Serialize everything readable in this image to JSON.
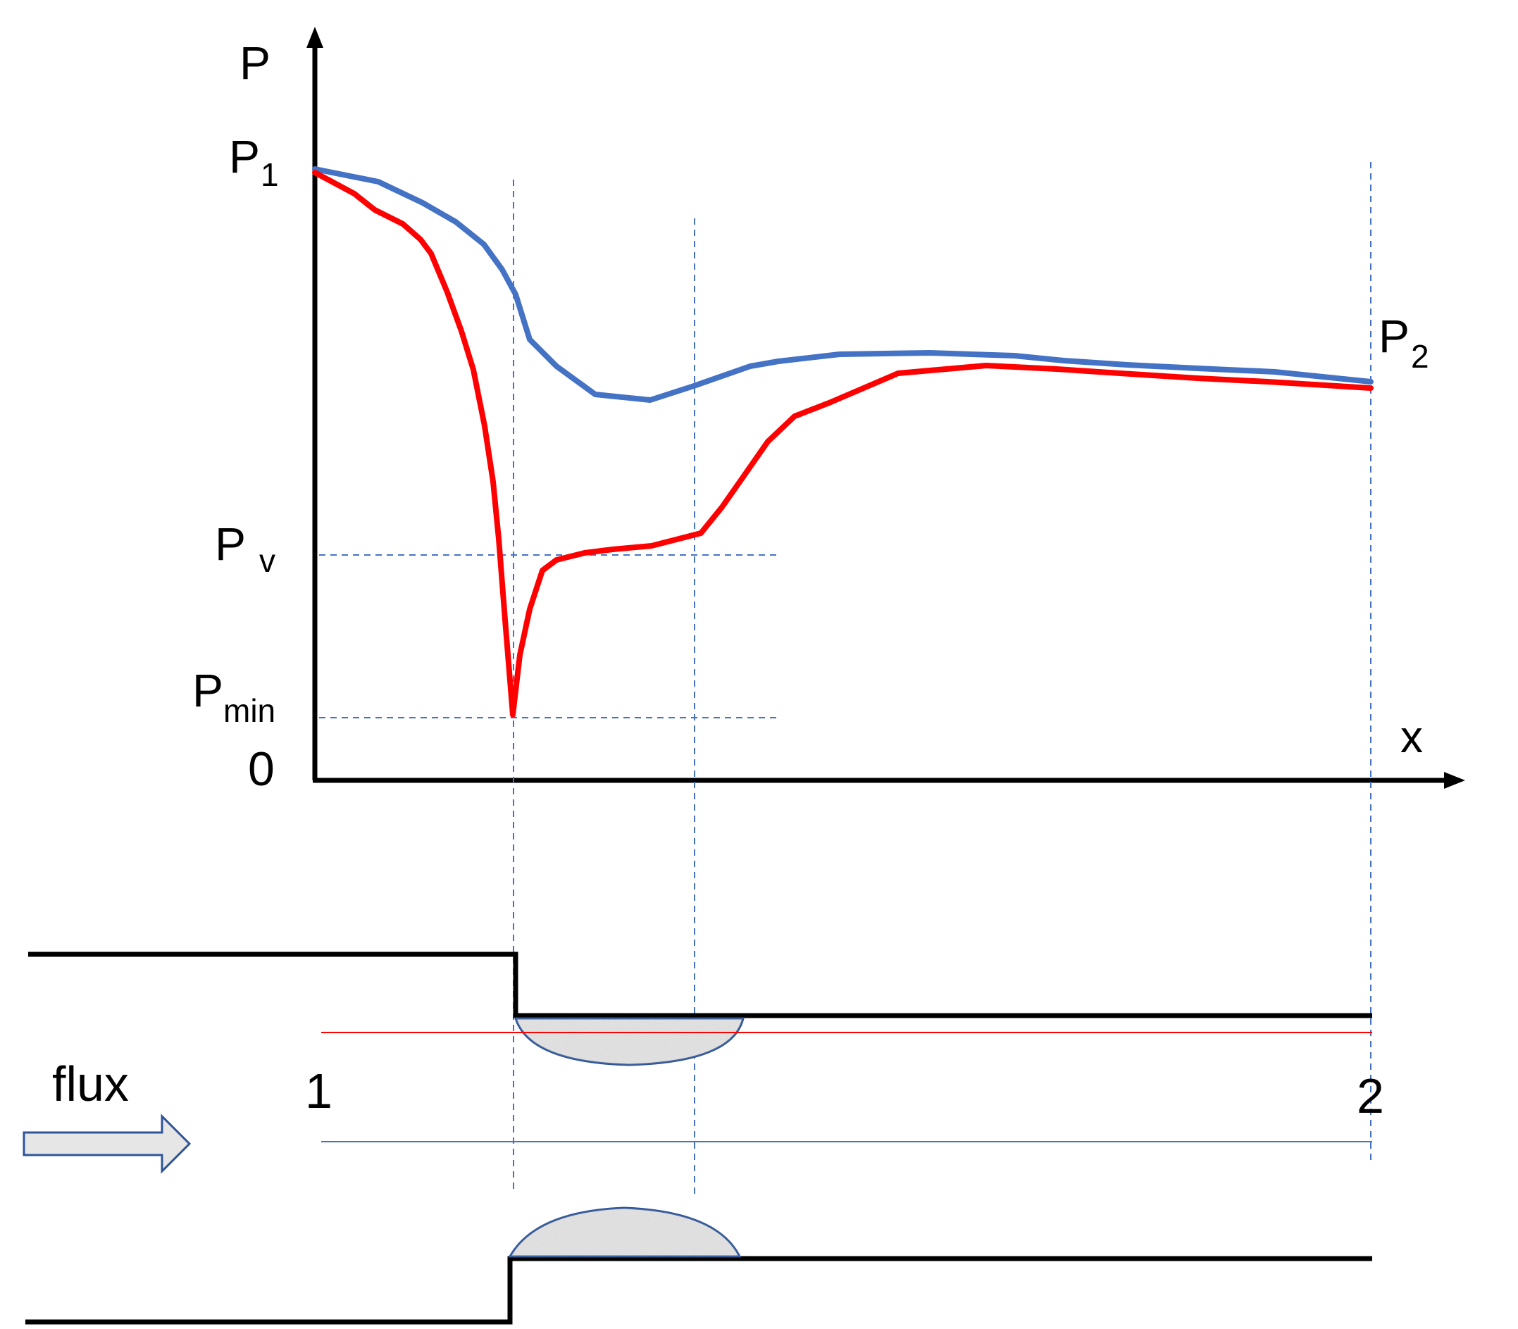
{
  "labels": {
    "y_axis": "P",
    "x_axis": "x",
    "p1_main": "P",
    "p1_sub": "1",
    "p2_main": "P",
    "p2_sub": "2",
    "pv_main": "P",
    "pv_sub": "v",
    "pmin_main": "P",
    "pmin_sub": "min",
    "zero": "0",
    "flux": "flux",
    "section_1": "1",
    "section_2": "2"
  },
  "colors": {
    "axis": "#000000",
    "pressure_no_cavitation": "#4472C4",
    "pressure_cavitation": "#FF0000",
    "guide_lines": "#4472C4",
    "pipe_wall": "#000000",
    "bubble_fill": "#E6E6E6",
    "bubble_outline": "#2F5597",
    "flux_arrow_fill": "#E7E6E6",
    "flux_arrow_outline": "#2F5597"
  }
}
